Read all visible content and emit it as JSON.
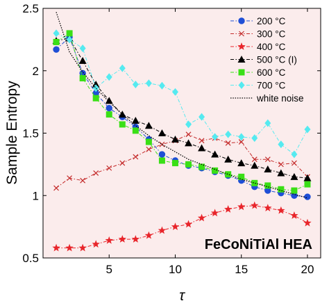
{
  "chart_data": {
    "type": "line",
    "ylabel": "Sample Entropy",
    "xlabel": "τ",
    "xlim": [
      0,
      21
    ],
    "ylim": [
      0.5,
      2.5
    ],
    "xticks": [
      5,
      10,
      15,
      20
    ],
    "yticks": [
      0.5,
      1,
      1.5,
      2,
      2.5
    ],
    "xtick_labels": [
      "5",
      "10",
      "15",
      "20"
    ],
    "ytick_labels": [
      "0.5",
      "1",
      "1.5",
      "2",
      "2.5"
    ],
    "grid": false,
    "background": "#fbecec",
    "legend_position": "top-right",
    "annotation": "FeCoNiTiAl HEA",
    "x": [
      1,
      2,
      3,
      4,
      5,
      6,
      7,
      8,
      9,
      10,
      11,
      12,
      13,
      14,
      15,
      16,
      17,
      18,
      19,
      20
    ],
    "series": [
      {
        "name": "200 °C",
        "color": "#1f4fd6",
        "marker": "circle",
        "line": "dashdot",
        "values": [
          2.17,
          2.27,
          1.98,
          1.82,
          1.7,
          1.63,
          1.55,
          1.45,
          1.33,
          1.28,
          1.24,
          1.22,
          1.19,
          1.16,
          1.12,
          1.07,
          1.04,
          1.02,
          1.0,
          0.99
        ]
      },
      {
        "name": "300 °C",
        "color": "#c42b2b",
        "marker": "x",
        "line": "dashdot",
        "values": [
          1.06,
          1.14,
          1.12,
          1.18,
          1.22,
          1.26,
          1.31,
          1.37,
          1.41,
          1.44,
          1.49,
          1.44,
          1.46,
          1.42,
          1.43,
          1.29,
          1.29,
          1.25,
          1.26,
          1.15
        ]
      },
      {
        "name": "400 °C",
        "color": "#e8252b",
        "marker": "star",
        "line": "dashdot",
        "values": [
          0.58,
          0.58,
          0.58,
          0.61,
          0.64,
          0.65,
          0.65,
          0.68,
          0.72,
          0.75,
          0.77,
          0.82,
          0.86,
          0.89,
          0.91,
          0.92,
          0.9,
          0.88,
          0.84,
          0.78
        ]
      },
      {
        "name": "500 °C (I)",
        "color": "#000000",
        "marker": "triangle",
        "line": "dashdot",
        "values": [
          2.24,
          2.26,
          2.08,
          1.89,
          1.76,
          1.65,
          1.6,
          1.56,
          1.5,
          1.45,
          1.42,
          1.38,
          1.33,
          1.29,
          1.26,
          1.24,
          1.21,
          1.18,
          1.15,
          1.14
        ]
      },
      {
        "name": "600 °C",
        "color": "#3adf16",
        "marker": "square",
        "line": "dashdot",
        "values": [
          2.23,
          2.3,
          1.94,
          1.78,
          1.65,
          1.57,
          1.52,
          1.43,
          1.28,
          1.26,
          1.25,
          1.23,
          1.2,
          1.17,
          1.15,
          1.1,
          1.08,
          1.05,
          1.04,
          1.09
        ]
      },
      {
        "name": "700 °C",
        "color": "#55eaf0",
        "marker": "diamond",
        "line": "dashdot",
        "values": [
          2.3,
          2.25,
          2.18,
          1.86,
          1.95,
          2.02,
          1.89,
          1.9,
          1.88,
          1.83,
          1.57,
          1.63,
          1.47,
          1.49,
          1.47,
          1.46,
          1.58,
          1.41,
          1.33,
          1.53
        ]
      },
      {
        "name": "white noise",
        "color": "#000000",
        "marker": "none",
        "line": "dotted",
        "values": [
          2.47,
          2.15,
          1.99,
          1.86,
          1.75,
          1.65,
          1.56,
          1.48,
          1.41,
          1.35,
          1.29,
          1.25,
          1.21,
          1.17,
          1.13,
          1.1,
          1.07,
          1.04,
          1.01,
          0.98
        ]
      }
    ]
  }
}
